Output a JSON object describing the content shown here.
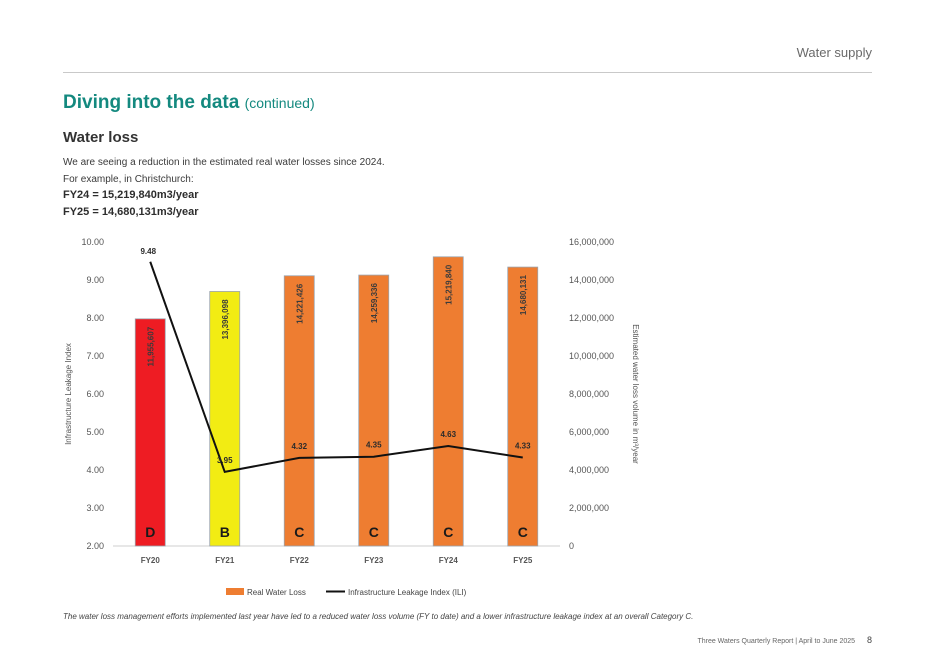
{
  "header": {
    "section": "Water supply"
  },
  "page": {
    "title": "Diving into the data",
    "title_suffix": "(continued)",
    "subtitle": "Water loss",
    "intro": "We are seeing a reduction in the estimated real water losses since 2024.",
    "example_intro": "For example, in Christchurch:",
    "fact_fy24": "FY24 = 15,219,840m3/year",
    "fact_fy25": "FY25 = 14,680,131m3/year"
  },
  "chart_data": {
    "type": "bar",
    "categories": [
      "FY20",
      "FY21",
      "FY22",
      "FY23",
      "FY24",
      "FY25"
    ],
    "ylabel_left": "Infrastructure Leakage Index",
    "ylabel_right": "Estimated water loss volume in m³/year",
    "ylim_left": [
      2,
      10
    ],
    "ylim_right": [
      0,
      16000000
    ],
    "left_ticks": [
      "2.00",
      "3.00",
      "4.00",
      "5.00",
      "6.00",
      "7.00",
      "8.00",
      "9.00",
      "10.00"
    ],
    "right_ticks": [
      "0",
      "2,000,000",
      "4,000,000",
      "6,000,000",
      "8,000,000",
      "10,000,000",
      "12,000,000",
      "14,000,000",
      "16,000,000"
    ],
    "series": [
      {
        "name": "Real Water Loss",
        "kind": "bar",
        "values": [
          11955607,
          13396098,
          14221426,
          14259336,
          15219840,
          14680131
        ],
        "labels": [
          "11,955,607",
          "13,396,098",
          "14,221,426",
          "14,259,336",
          "15,219,840",
          "14,680,131"
        ],
        "colors": [
          "#ee1c23",
          "#f2ec13",
          "#ee7d31",
          "#ee7d31",
          "#ee7d31",
          "#ee7d31"
        ]
      },
      {
        "name": "Infrastructure Leakage Index (ILI)",
        "kind": "line",
        "values": [
          9.48,
          3.95,
          4.32,
          4.35,
          4.63,
          4.33
        ],
        "labels": [
          "9.48",
          "3.95",
          "4.32",
          "4.35",
          "4.63",
          "4.33"
        ],
        "color": "#111111"
      }
    ],
    "categories_grade": [
      "D",
      "B",
      "C",
      "C",
      "C",
      "C"
    ],
    "legend_position": "bottom",
    "grid": false
  },
  "footnote": "The water loss management efforts implemented last year have led to a reduced water loss volume (FY to date) and a lower infrastructure leakage index at an overall Category C.",
  "footer": {
    "report": "Three Waters Quarterly Report  |  April to June 2025",
    "page_number": "8"
  }
}
